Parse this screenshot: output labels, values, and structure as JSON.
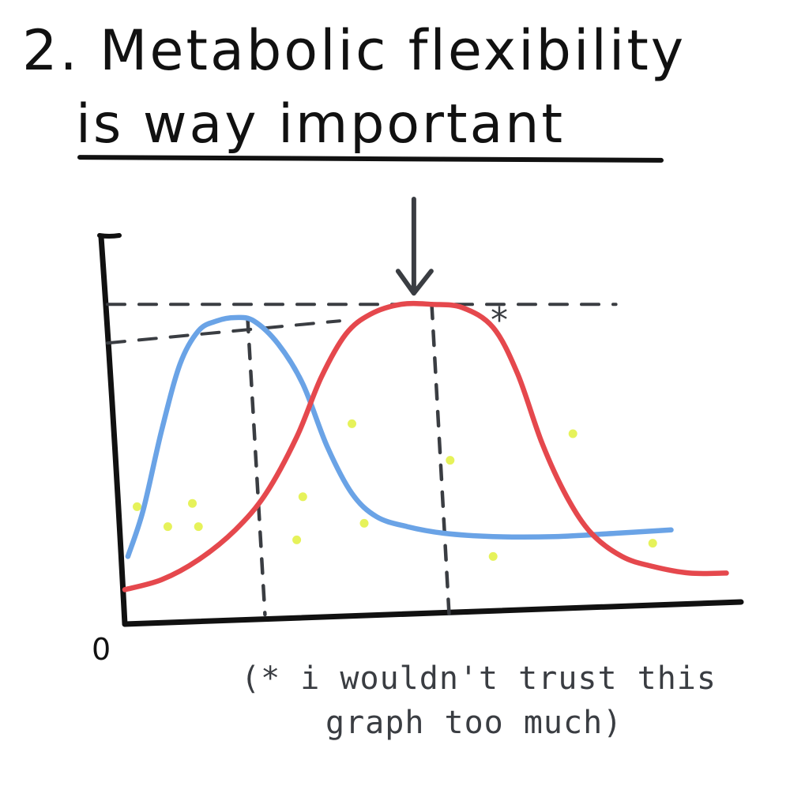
{
  "title": {
    "line1": "2. Metabolic flexibility",
    "line2": "is way important"
  },
  "footnote": {
    "line1": "(* i wouldn't trust this",
    "line2": "graph too much)"
  },
  "colors": {
    "ink": "#111111",
    "dashes": "#3a3d42",
    "blue_curve": "#6aa3e6",
    "red_curve": "#e5484d",
    "dots": "#e6f25a"
  },
  "chart_data": {
    "type": "line",
    "title": "2. Metabolic flexibility is way important",
    "xlabel": "",
    "ylabel": "",
    "origin_label": "0",
    "asterisk_mark": "*",
    "xlim": [
      0,
      10
    ],
    "ylim": [
      0,
      10
    ],
    "grid": false,
    "series": [
      {
        "color": "#6aa3e6",
        "x": [
          0.05,
          0.3,
          0.6,
          0.9,
          1.2,
          1.5,
          1.8,
          2.1,
          2.5,
          2.9,
          3.3,
          3.7,
          4.1,
          4.6,
          5.2,
          6.0,
          7.0,
          8.0,
          8.9
        ],
        "y": [
          1.8,
          3.2,
          5.6,
          7.6,
          8.6,
          8.9,
          9.0,
          8.9,
          8.2,
          7.0,
          5.1,
          3.7,
          3.0,
          2.7,
          2.5,
          2.4,
          2.4,
          2.5,
          2.6
        ]
      },
      {
        "color": "#e5484d",
        "x": [
          0,
          0.6,
          1.2,
          1.8,
          2.3,
          2.8,
          3.2,
          3.6,
          4.0,
          4.5,
          5.0,
          5.5,
          6.0,
          6.4,
          6.8,
          7.2,
          7.6,
          8.1,
          8.6,
          9.2,
          9.8
        ],
        "y": [
          0.8,
          1.1,
          1.7,
          2.6,
          3.7,
          5.4,
          7.2,
          8.5,
          9.1,
          9.4,
          9.4,
          9.3,
          8.7,
          7.3,
          5.2,
          3.6,
          2.5,
          1.8,
          1.5,
          1.3,
          1.3
        ]
      }
    ],
    "annotations": [
      {
        "type": "vline",
        "x": 2.0,
        "y": 9.0
      },
      {
        "type": "vline",
        "x": 5.0,
        "y": 9.4
      },
      {
        "type": "hline",
        "y": 8.9,
        "x_end": 3.5
      },
      {
        "type": "hline",
        "y": 9.4,
        "x_end": 8.0
      },
      {
        "type": "arrow_down",
        "x": 4.4,
        "y": 9.4
      },
      {
        "type": "asterisk",
        "x": 6.1,
        "y": 9.1
      }
    ],
    "scatter_dots": {
      "color": "#e6f25a",
      "points": [
        [
          0.2,
          3.3
        ],
        [
          0.7,
          2.7
        ],
        [
          1.1,
          3.4
        ],
        [
          1.2,
          2.7
        ],
        [
          2.8,
          2.3
        ],
        [
          2.9,
          3.6
        ],
        [
          3.7,
          5.8
        ],
        [
          3.9,
          2.8
        ],
        [
          5.3,
          4.7
        ],
        [
          6.0,
          1.8
        ],
        [
          7.3,
          5.5
        ],
        [
          8.6,
          2.2
        ]
      ]
    }
  }
}
